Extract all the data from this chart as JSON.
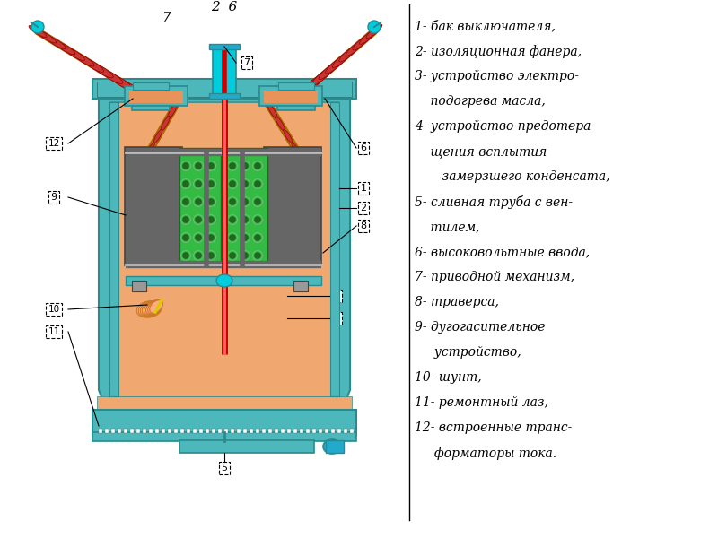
{
  "background_color": "#ffffff",
  "legend_lines": [
    [
      "1- бак выключателя,",
      0
    ],
    [
      "2- изоляционная фанера,",
      0
    ],
    [
      "3- устройство электро-",
      0
    ],
    [
      "    подогрева масла,",
      1
    ],
    [
      "4- устройство предотера-",
      0
    ],
    [
      "    щения всплытия",
      1
    ],
    [
      "       замерзшего конденсата,",
      1
    ],
    [
      "5- сливная труба с вен-",
      0
    ],
    [
      "    тилем,",
      1
    ],
    [
      "6- высоковольтные ввода,",
      0
    ],
    [
      "7- приводной механизм,",
      0
    ],
    [
      "8- траверса,",
      0
    ],
    [
      "9- дугогасительное",
      0
    ],
    [
      "     устройство,",
      1
    ],
    [
      "10- шунт,",
      0
    ],
    [
      "11- ремонтный лаз,",
      0
    ],
    [
      "12- встроенные транс-",
      0
    ],
    [
      "     форматоры тока.",
      1
    ]
  ],
  "colors": {
    "teal": "#4DB8BB",
    "dark_teal": "#2A8A8C",
    "teal_dark2": "#1A6B6D",
    "red_ins": "#CC3333",
    "red_dark": "#8B0000",
    "orange": "#E8935A",
    "orange_light": "#F0A870",
    "gray_dark": "#666666",
    "gray_med": "#999999",
    "gray_light": "#BBBBBB",
    "green_bright": "#33BB44",
    "green_dark": "#1A6B22",
    "green_dot": "#115511",
    "cyan_bright": "#00CCDD",
    "cyan_med": "#22AACC",
    "red_rod": "#CC0000",
    "peach": "#FFAA88",
    "yellow": "#DDCC00",
    "white": "#ffffff",
    "black": "#000000",
    "tan_light": "#F5D090"
  }
}
